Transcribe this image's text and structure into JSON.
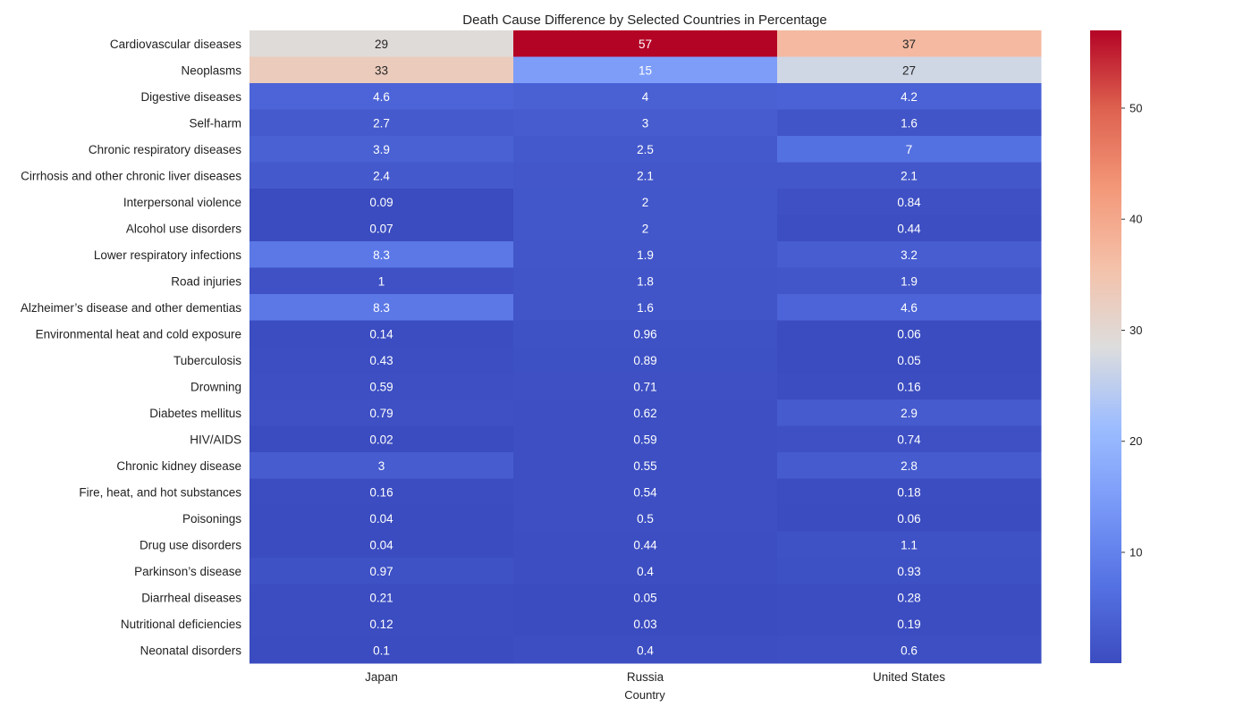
{
  "chart_data": {
    "type": "heatmap",
    "title": "Death Cause Difference by Selected Countries in Percentage",
    "xlabel": "Country",
    "ylabel": "",
    "columns": [
      "Japan",
      "Russia",
      "United States"
    ],
    "rows": [
      "Cardiovascular diseases",
      "Neoplasms",
      "Digestive diseases",
      "Self-harm",
      "Chronic respiratory diseases",
      "Cirrhosis and other chronic liver diseases",
      "Interpersonal violence",
      "Alcohol use disorders",
      "Lower respiratory infections",
      "Road injuries",
      "Alzheimer’s disease and other dementias",
      "Environmental heat and cold exposure",
      "Tuberculosis",
      "Drowning",
      "Diabetes mellitus",
      "HIV/AIDS",
      "Chronic kidney disease",
      "Fire, heat, and hot substances",
      "Poisonings",
      "Drug use disorders",
      "Parkinson’s disease",
      "Diarrheal diseases",
      "Nutritional deficiencies",
      "Neonatal disorders"
    ],
    "values": [
      [
        29,
        57,
        37
      ],
      [
        33,
        15,
        27
      ],
      [
        4.6,
        4,
        4.2
      ],
      [
        2.7,
        3,
        1.6
      ],
      [
        3.9,
        2.5,
        7
      ],
      [
        2.4,
        2.1,
        2.1
      ],
      [
        0.09,
        2,
        0.84
      ],
      [
        0.07,
        2,
        0.44
      ],
      [
        8.3,
        1.9,
        3.2
      ],
      [
        1,
        1.8,
        1.9
      ],
      [
        8.3,
        1.6,
        4.6
      ],
      [
        0.14,
        0.96,
        0.06
      ],
      [
        0.43,
        0.89,
        0.05
      ],
      [
        0.59,
        0.71,
        0.16
      ],
      [
        0.79,
        0.62,
        2.9
      ],
      [
        0.02,
        0.59,
        0.74
      ],
      [
        3,
        0.55,
        2.8
      ],
      [
        0.16,
        0.54,
        0.18
      ],
      [
        0.04,
        0.5,
        0.06
      ],
      [
        0.04,
        0.44,
        1.1
      ],
      [
        0.97,
        0.4,
        0.93
      ],
      [
        0.21,
        0.05,
        0.28
      ],
      [
        0.12,
        0.03,
        0.19
      ],
      [
        0.1,
        0.4,
        0.6
      ]
    ],
    "value_range": [
      0.02,
      57
    ],
    "colormap": "coolwarm",
    "colorbar_ticks": [
      10,
      20,
      30,
      40,
      50
    ],
    "legend": "colorbar-right",
    "grid": false
  }
}
